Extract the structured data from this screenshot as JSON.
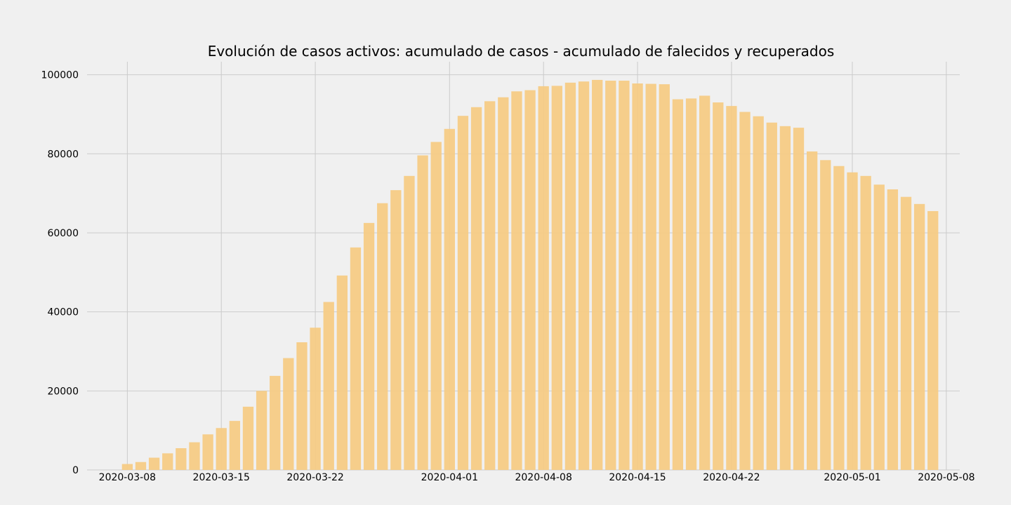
{
  "chart_data": {
    "type": "bar",
    "title": "Evolución de casos activos: acumulado de casos - acumulado de falecidos y recuperados",
    "xlabel": "",
    "ylabel": "",
    "bar_color": "#f5cb85",
    "background_color": "#f0f0f0",
    "grid_color": "#cbcbcb",
    "grid": true,
    "legend": "none",
    "x_start_date": "2020-03-08",
    "xlim": [
      "2020-03-05",
      "2020-05-09"
    ],
    "ylim": [
      0,
      103300
    ],
    "x_ticks": [
      "2020-03-08",
      "2020-03-15",
      "2020-03-22",
      "2020-04-01",
      "2020-04-08",
      "2020-04-15",
      "2020-04-22",
      "2020-05-01",
      "2020-05-08"
    ],
    "y_ticks": [
      0,
      20000,
      40000,
      60000,
      80000,
      100000
    ],
    "y_tick_labels": [
      "0",
      "20000",
      "40000",
      "60000",
      "80000",
      "100000"
    ],
    "x": [
      "2020-03-08",
      "2020-03-09",
      "2020-03-10",
      "2020-03-11",
      "2020-03-12",
      "2020-03-13",
      "2020-03-14",
      "2020-03-15",
      "2020-03-16",
      "2020-03-17",
      "2020-03-18",
      "2020-03-19",
      "2020-03-20",
      "2020-03-21",
      "2020-03-22",
      "2020-03-23",
      "2020-03-24",
      "2020-03-25",
      "2020-03-26",
      "2020-03-27",
      "2020-03-28",
      "2020-03-29",
      "2020-03-30",
      "2020-03-31",
      "2020-04-01",
      "2020-04-02",
      "2020-04-03",
      "2020-04-04",
      "2020-04-05",
      "2020-04-06",
      "2020-04-07",
      "2020-04-08",
      "2020-04-09",
      "2020-04-10",
      "2020-04-11",
      "2020-04-12",
      "2020-04-13",
      "2020-04-14",
      "2020-04-15",
      "2020-04-16",
      "2020-04-17",
      "2020-04-18",
      "2020-04-19",
      "2020-04-20",
      "2020-04-21",
      "2020-04-22",
      "2020-04-23",
      "2020-04-24",
      "2020-04-25",
      "2020-04-26",
      "2020-04-27",
      "2020-04-28",
      "2020-04-29",
      "2020-04-30",
      "2020-05-01",
      "2020-05-02",
      "2020-05-03",
      "2020-05-04",
      "2020-05-05",
      "2020-05-06",
      "2020-05-07"
    ],
    "values": [
      1500,
      2000,
      3100,
      4200,
      5500,
      7000,
      9000,
      10600,
      12400,
      16000,
      20000,
      23800,
      28300,
      32300,
      36000,
      42500,
      49200,
      56300,
      62500,
      67500,
      70800,
      74400,
      79600,
      83000,
      86300,
      89600,
      91800,
      93300,
      94300,
      95800,
      96100,
      97100,
      97200,
      98000,
      98300,
      98700,
      98500,
      98500,
      97800,
      97700,
      97600,
      93800,
      94000,
      94700,
      93000,
      92100,
      90600,
      89500,
      87900,
      87000,
      86600,
      80600,
      78400,
      76900,
      75300,
      74400,
      72200,
      71000,
      69100,
      67300,
      65500
    ]
  }
}
